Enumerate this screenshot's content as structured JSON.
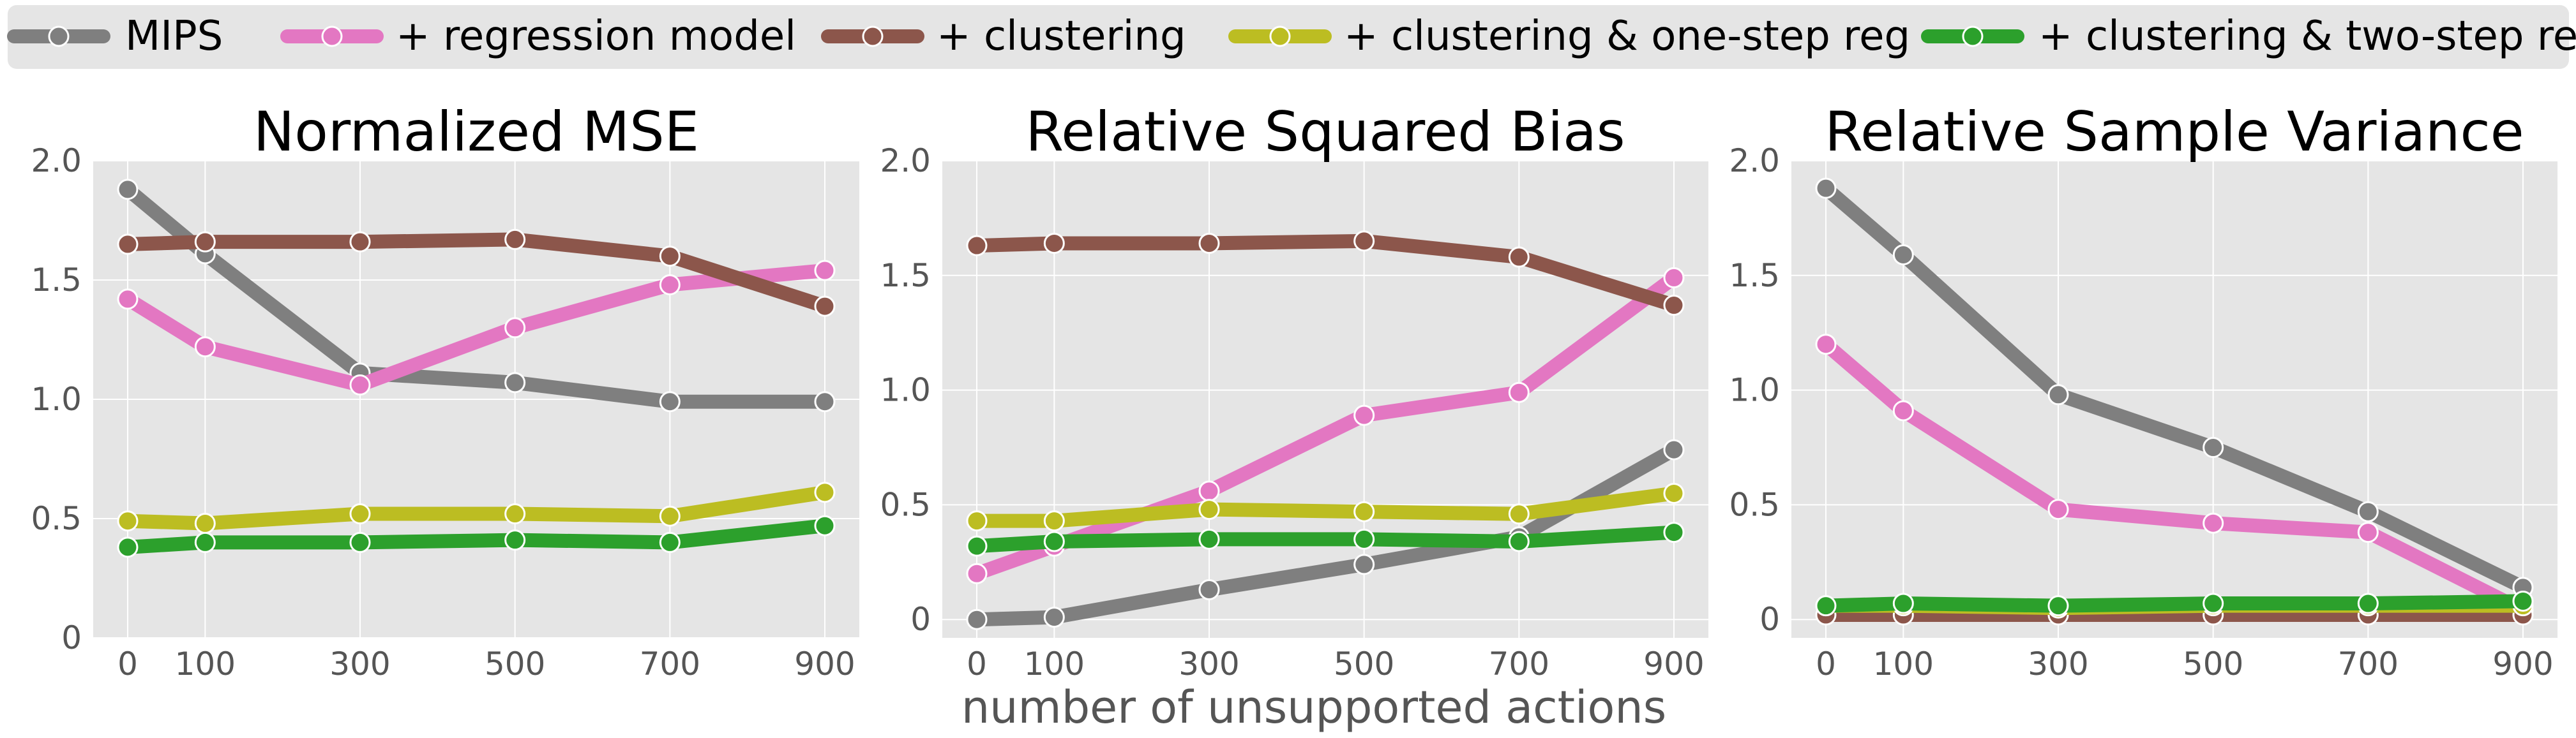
{
  "chart_data": {
    "type": "line",
    "xlabel": "number of unsupported actions",
    "legend": {
      "placement": "top",
      "entries": [
        {
          "name": "MIPS",
          "color": "#7f7f7f"
        },
        {
          "name": "+ regression model",
          "color": "#e377c2"
        },
        {
          "name": "+ clustering",
          "color": "#8c564b"
        },
        {
          "name": "+ clustering & one-step reg",
          "color": "#bcbd22"
        },
        {
          "name": "+ clustering & two-step reg",
          "color": "#2ca02c"
        }
      ]
    },
    "x": [
      0,
      100,
      300,
      500,
      700,
      900
    ],
    "x_ticks": [
      "0",
      "100",
      "300",
      "500",
      "700",
      "900"
    ],
    "grid": true,
    "panels": [
      {
        "title": "Normalized MSE",
        "ylim": [
          0,
          2.0
        ],
        "y_ticks": [
          {
            "value": 0,
            "label": "0"
          },
          {
            "value": 0.5,
            "label": "0.5"
          },
          {
            "value": 1.0,
            "label": "1.0"
          },
          {
            "value": 1.5,
            "label": "1.5"
          },
          {
            "value": 2.0,
            "label": "2.0"
          }
        ],
        "series": [
          {
            "name": "MIPS",
            "values": [
              1.88,
              1.61,
              1.11,
              1.07,
              0.99,
              0.99
            ]
          },
          {
            "name": "+ regression model",
            "values": [
              1.42,
              1.22,
              1.06,
              1.3,
              1.48,
              1.54
            ]
          },
          {
            "name": "+ clustering",
            "values": [
              1.65,
              1.66,
              1.66,
              1.67,
              1.6,
              1.39
            ]
          },
          {
            "name": "+ clustering & one-step reg",
            "values": [
              0.49,
              0.48,
              0.52,
              0.52,
              0.51,
              0.61
            ]
          },
          {
            "name": "+ clustering & two-step reg",
            "values": [
              0.38,
              0.4,
              0.4,
              0.41,
              0.4,
              0.47
            ]
          }
        ]
      },
      {
        "title": "Relative Squared Bias",
        "ylim": [
          -0.08,
          2.0
        ],
        "y_ticks": [
          {
            "value": 0,
            "label": "0"
          },
          {
            "value": 0.5,
            "label": "0.5"
          },
          {
            "value": 1.0,
            "label": "1.0"
          },
          {
            "value": 1.5,
            "label": "1.5"
          },
          {
            "value": 2.0,
            "label": "2.0"
          }
        ],
        "series": [
          {
            "name": "MIPS",
            "values": [
              0.0,
              0.01,
              0.13,
              0.24,
              0.36,
              0.74
            ]
          },
          {
            "name": "+ regression model",
            "values": [
              0.2,
              0.32,
              0.56,
              0.89,
              0.99,
              1.49
            ]
          },
          {
            "name": "+ clustering",
            "values": [
              1.63,
              1.64,
              1.64,
              1.65,
              1.58,
              1.37
            ]
          },
          {
            "name": "+ clustering & one-step reg",
            "values": [
              0.43,
              0.43,
              0.48,
              0.47,
              0.46,
              0.55
            ]
          },
          {
            "name": "+ clustering & two-step reg",
            "values": [
              0.32,
              0.34,
              0.35,
              0.35,
              0.34,
              0.38
            ]
          }
        ]
      },
      {
        "title": "Relative Sample Variance",
        "ylim": [
          -0.08,
          2.0
        ],
        "y_ticks": [
          {
            "value": 0,
            "label": "0"
          },
          {
            "value": 0.5,
            "label": "0.5"
          },
          {
            "value": 1.0,
            "label": "1.0"
          },
          {
            "value": 1.5,
            "label": "1.5"
          },
          {
            "value": 2.0,
            "label": "2.0"
          }
        ],
        "series": [
          {
            "name": "MIPS",
            "values": [
              1.88,
              1.59,
              0.98,
              0.75,
              0.47,
              0.14
            ]
          },
          {
            "name": "+ regression model",
            "values": [
              1.2,
              0.91,
              0.48,
              0.42,
              0.38,
              0.04
            ]
          },
          {
            "name": "+ clustering",
            "values": [
              0.02,
              0.02,
              0.02,
              0.02,
              0.02,
              0.02
            ]
          },
          {
            "name": "+ clustering & one-step reg",
            "values": [
              0.06,
              0.06,
              0.05,
              0.06,
              0.06,
              0.06
            ]
          },
          {
            "name": "+ clustering & two-step reg",
            "values": [
              0.06,
              0.07,
              0.06,
              0.07,
              0.07,
              0.08
            ]
          }
        ]
      }
    ]
  }
}
